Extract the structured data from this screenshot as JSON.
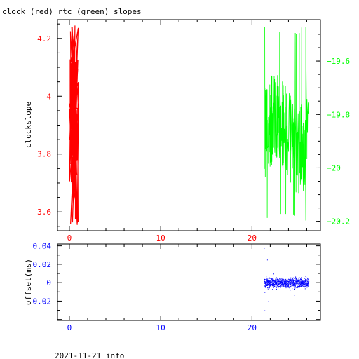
{
  "header": {
    "title": "clock (red) rtc (green) slopes"
  },
  "footer": {
    "caption": "2021-11-21 info"
  },
  "colors": {
    "clock": "#ff0000",
    "rtc": "#00ff00",
    "offset": "#0000ff",
    "axis": "#000000"
  },
  "chart_data": [
    {
      "type": "line",
      "ylabel": "clockslope",
      "xlim": [
        -1.3,
        27.5
      ],
      "ylim": [
        3.535,
        4.265
      ],
      "y2lim": [
        -20.235,
        -19.445
      ],
      "x_ticks": [
        0,
        10,
        20
      ],
      "x_tick_labels": [
        "0",
        "10",
        "20"
      ],
      "y_ticks": [
        3.6,
        3.8,
        4.0,
        4.2
      ],
      "y_tick_labels": [
        "3.6",
        "3.8",
        "4",
        "4.2"
      ],
      "y2_ticks": [
        -20.2,
        -20.0,
        -19.8,
        -19.6
      ],
      "y2_tick_labels": [
        "-20.2",
        "-20",
        "-19.8",
        "-19.6"
      ],
      "series": [
        {
          "axis": "left",
          "color": "#ff0000",
          "x_range": [
            0.0,
            1.0
          ],
          "y_range": [
            3.555,
            4.245
          ],
          "y_center": 3.86,
          "points": 120
        },
        {
          "axis": "right",
          "color": "#00ff00",
          "x_range": [
            21.4,
            26.2
          ],
          "y_range": [
            -20.2,
            -19.47
          ],
          "y_center": -19.87,
          "points": 300
        }
      ]
    },
    {
      "type": "scatter",
      "ylabel": "offset(ms)",
      "xlim": [
        -1.3,
        27.5
      ],
      "ylim": [
        -0.041,
        0.042
      ],
      "x_ticks": [
        0,
        10,
        20
      ],
      "x_tick_labels": [
        "0",
        "10",
        "20"
      ],
      "y_ticks": [
        -0.02,
        0,
        0.02,
        0.04
      ],
      "y_tick_labels": [
        "-0.02",
        "0",
        "0.02",
        "0.04"
      ],
      "series": [
        {
          "color": "#0000ff",
          "x_range": [
            21.3,
            26.2
          ],
          "y_center": 0.0,
          "y_spread": 0.005,
          "outliers_y": [
            0.038,
            -0.03,
            0.025,
            -0.02
          ],
          "points": 900
        }
      ]
    }
  ]
}
